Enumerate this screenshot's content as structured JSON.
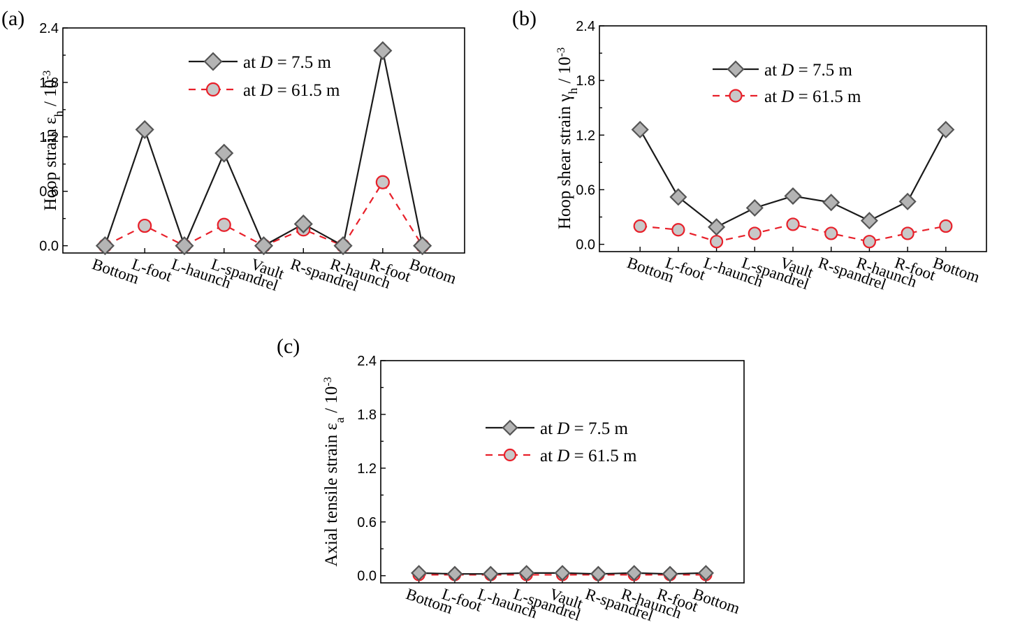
{
  "chart_data": [
    {
      "panel": "(a)",
      "type": "line",
      "ylabel": "Hoop strain ε",
      "ylabel_sub": "h",
      "ylabel_unit": " / 10",
      "ylabel_exp": "-3",
      "ylim": [
        -0.08,
        2.4
      ],
      "yticks": [
        "0.0",
        "0.6",
        "1.2",
        "1.8",
        "2.4"
      ],
      "categories": [
        "Bottom",
        "L-foot",
        "L-haunch",
        "L-spandrel",
        "Vault",
        "R-spandrel",
        "R-haunch",
        "R-foot",
        "Bottom"
      ],
      "legend_position": "top-right",
      "series": [
        {
          "name": "at D = 7.5 m",
          "label_pre": "at ",
          "label_var": "D",
          "label_post": " = 7.5 m",
          "marker": "diamond",
          "values": [
            0.0,
            1.28,
            0.0,
            1.02,
            0.0,
            0.24,
            0.0,
            2.15,
            0.0
          ]
        },
        {
          "name": "at D = 61.5 m",
          "label_pre": "at ",
          "label_var": "D",
          "label_post": " = 61.5 m",
          "marker": "circle",
          "values": [
            0.0,
            0.22,
            0.0,
            0.23,
            0.0,
            0.18,
            0.0,
            0.7,
            0.0
          ]
        }
      ]
    },
    {
      "panel": "(b)",
      "type": "line",
      "ylabel": "Hoop shear strain γ",
      "ylabel_sub": "h",
      "ylabel_unit": " / 10",
      "ylabel_exp": "-3",
      "ylim": [
        -0.08,
        2.4
      ],
      "yticks": [
        "0.0",
        "0.6",
        "1.2",
        "1.8",
        "2.4"
      ],
      "categories": [
        "Bottom",
        "L-foot",
        "L-haunch",
        "L-spandrel",
        "Vault",
        "R-spandrel",
        "R-haunch",
        "R-foot",
        "Bottom"
      ],
      "legend_position": "top-right",
      "series": [
        {
          "name": "at D = 7.5 m",
          "label_pre": "at ",
          "label_var": "D",
          "label_post": " = 7.5 m",
          "marker": "diamond",
          "values": [
            1.26,
            0.52,
            0.19,
            0.4,
            0.53,
            0.46,
            0.26,
            0.47,
            1.26
          ]
        },
        {
          "name": "at D = 61.5 m",
          "label_pre": "at ",
          "label_var": "D",
          "label_post": " = 61.5 m",
          "marker": "circle",
          "values": [
            0.2,
            0.16,
            0.03,
            0.12,
            0.22,
            0.12,
            0.03,
            0.12,
            0.2
          ]
        }
      ]
    },
    {
      "panel": "(c)",
      "type": "line",
      "ylabel": "Axial tensile strain ε",
      "ylabel_sub": "a",
      "ylabel_unit": " / 10",
      "ylabel_exp": "-3",
      "ylim": [
        -0.08,
        2.4
      ],
      "yticks": [
        "0.0",
        "0.6",
        "1.2",
        "1.8",
        "2.4"
      ],
      "categories": [
        "Bottom",
        "L-foot",
        "L-haunch",
        "L-spandrel",
        "Vault",
        "R-spandrel",
        "R-haunch",
        "R-foot",
        "Bottom"
      ],
      "legend_position": "top-center",
      "series": [
        {
          "name": "at D = 7.5 m",
          "label_pre": "at ",
          "label_var": "D",
          "label_post": " = 7.5 m",
          "marker": "diamond",
          "values": [
            0.03,
            0.02,
            0.02,
            0.03,
            0.03,
            0.02,
            0.03,
            0.02,
            0.03
          ]
        },
        {
          "name": "at D = 61.5 m",
          "label_pre": "at ",
          "label_var": "D",
          "label_post": " = 61.5 m",
          "marker": "circle",
          "values": [
            0.01,
            0.01,
            0.01,
            0.01,
            0.01,
            0.01,
            0.01,
            0.01,
            0.01
          ]
        }
      ]
    }
  ],
  "colors": {
    "series1_line": "#1a1a1a",
    "series1_marker_fill": "#b4b4b4",
    "series1_marker_edge": "#555555",
    "series2_line": "#e8202a",
    "series2_marker_fill": "#c8c8c8"
  }
}
